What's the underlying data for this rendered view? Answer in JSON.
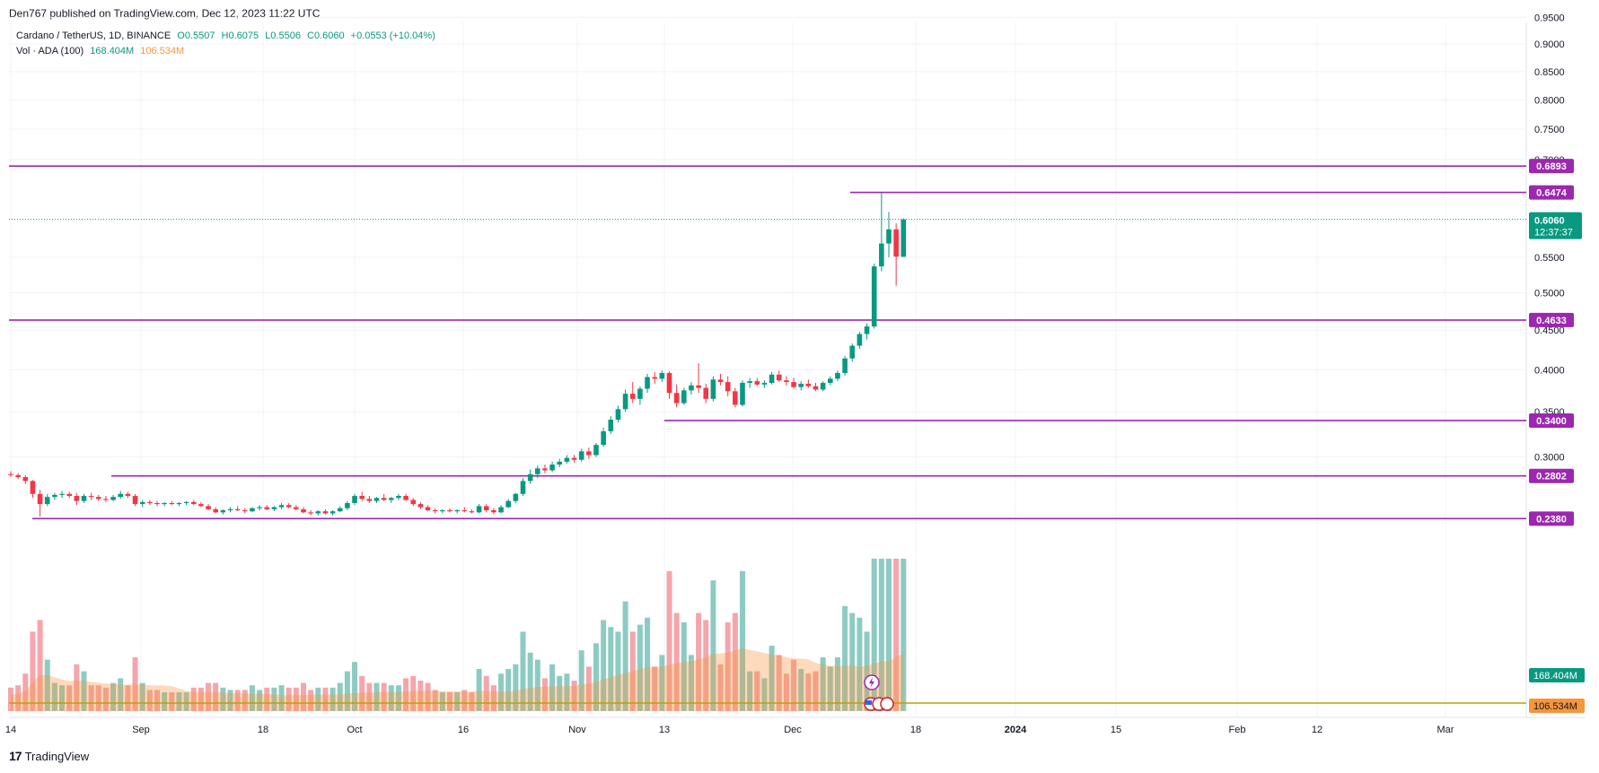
{
  "header": {
    "published": "Den767 published on TradingView.com, Dec 12, 2023 11:22 UTC"
  },
  "legend": {
    "symbol": "Cardano / TetherUS, 1D, BINANCE",
    "open": "O0.5507",
    "high": "H0.6075",
    "low": "L0.5506",
    "close": "C0.6060",
    "change": "+0.0553 (+10.04%)",
    "vol_label": "Vol · ADA (100)",
    "vol_value": "168.404M",
    "vol_ma": "106.534M"
  },
  "footer": {
    "brand": "TradingView"
  },
  "colors": {
    "up": "#089981",
    "down": "#f23645",
    "level": "#9c27b0",
    "vol_up": "#8dcbc2",
    "vol_down": "#f5a5ab",
    "ma": "#f7953b",
    "axis": "#787b86"
  },
  "chart_data": {
    "type": "candlestick",
    "title": "Cardano / TetherUS, 1D, BINANCE",
    "y_axis": {
      "ticks": [
        "0.9500",
        "0.9000",
        "0.8500",
        "0.8000",
        "0.7500",
        "0.7000",
        "0.5500",
        "0.5000",
        "0.4500",
        "0.4000",
        "0.3500",
        "0.3000"
      ]
    },
    "x_axis": {
      "ticks": [
        "14",
        "Sep",
        "18",
        "Oct",
        "16",
        "Nov",
        "13",
        "Dec",
        "18",
        "2024",
        "15",
        "Feb",
        "12",
        "Mar"
      ]
    },
    "levels": [
      {
        "price": 0.6893,
        "label": "0.6893"
      },
      {
        "price": 0.6474,
        "label": "0.6474"
      },
      {
        "price": 0.4633,
        "label": "0.4633"
      },
      {
        "price": 0.34,
        "label": "0.3400"
      },
      {
        "price": 0.2802,
        "label": "0.2802"
      },
      {
        "price": 0.238,
        "label": "0.2380"
      }
    ],
    "last_price": {
      "value": 0.606,
      "label": "0.6060",
      "countdown": "12:37:37"
    },
    "volume": {
      "last": "168.404M",
      "ma": "106.534M"
    },
    "candles_from": "Aug 14 2023",
    "candles": [
      [
        0.282,
        0.285,
        0.279,
        0.281
      ],
      [
        0.281,
        0.283,
        0.277,
        0.279
      ],
      [
        0.279,
        0.281,
        0.272,
        0.275
      ],
      [
        0.275,
        0.276,
        0.258,
        0.262
      ],
      [
        0.262,
        0.266,
        0.24,
        0.252
      ],
      [
        0.252,
        0.262,
        0.25,
        0.259
      ],
      [
        0.259,
        0.263,
        0.256,
        0.261
      ],
      [
        0.261,
        0.265,
        0.258,
        0.262
      ],
      [
        0.262,
        0.264,
        0.258,
        0.26
      ],
      [
        0.26,
        0.263,
        0.251,
        0.255
      ],
      [
        0.255,
        0.262,
        0.253,
        0.26
      ],
      [
        0.26,
        0.263,
        0.256,
        0.259
      ],
      [
        0.259,
        0.261,
        0.255,
        0.257
      ],
      [
        0.257,
        0.26,
        0.254,
        0.256
      ],
      [
        0.256,
        0.261,
        0.255,
        0.259
      ],
      [
        0.259,
        0.265,
        0.257,
        0.262
      ],
      [
        0.262,
        0.264,
        0.258,
        0.26
      ],
      [
        0.26,
        0.262,
        0.25,
        0.252
      ],
      [
        0.252,
        0.256,
        0.249,
        0.254
      ],
      [
        0.254,
        0.256,
        0.251,
        0.253
      ],
      [
        0.253,
        0.255,
        0.25,
        0.252
      ],
      [
        0.252,
        0.254,
        0.25,
        0.253
      ],
      [
        0.253,
        0.255,
        0.251,
        0.252
      ],
      [
        0.252,
        0.254,
        0.25,
        0.253
      ],
      [
        0.253,
        0.255,
        0.251,
        0.254
      ],
      [
        0.254,
        0.256,
        0.251,
        0.252
      ],
      [
        0.252,
        0.254,
        0.249,
        0.25
      ],
      [
        0.25,
        0.252,
        0.246,
        0.247
      ],
      [
        0.247,
        0.249,
        0.243,
        0.244
      ],
      [
        0.244,
        0.247,
        0.242,
        0.246
      ],
      [
        0.246,
        0.249,
        0.244,
        0.247
      ],
      [
        0.247,
        0.25,
        0.245,
        0.246
      ],
      [
        0.246,
        0.248,
        0.243,
        0.245
      ],
      [
        0.245,
        0.249,
        0.244,
        0.248
      ],
      [
        0.248,
        0.251,
        0.246,
        0.249
      ],
      [
        0.249,
        0.251,
        0.246,
        0.247
      ],
      [
        0.247,
        0.25,
        0.245,
        0.249
      ],
      [
        0.249,
        0.253,
        0.247,
        0.251
      ],
      [
        0.251,
        0.253,
        0.248,
        0.249
      ],
      [
        0.249,
        0.251,
        0.246,
        0.247
      ],
      [
        0.247,
        0.249,
        0.243,
        0.244
      ],
      [
        0.244,
        0.246,
        0.241,
        0.243
      ],
      [
        0.243,
        0.246,
        0.241,
        0.245
      ],
      [
        0.245,
        0.247,
        0.242,
        0.243
      ],
      [
        0.243,
        0.246,
        0.241,
        0.245
      ],
      [
        0.245,
        0.25,
        0.244,
        0.248
      ],
      [
        0.248,
        0.255,
        0.246,
        0.253
      ],
      [
        0.253,
        0.262,
        0.251,
        0.26
      ],
      [
        0.26,
        0.264,
        0.255,
        0.257
      ],
      [
        0.257,
        0.26,
        0.253,
        0.255
      ],
      [
        0.255,
        0.259,
        0.253,
        0.258
      ],
      [
        0.258,
        0.262,
        0.255,
        0.256
      ],
      [
        0.256,
        0.259,
        0.253,
        0.258
      ],
      [
        0.258,
        0.262,
        0.256,
        0.26
      ],
      [
        0.26,
        0.262,
        0.255,
        0.256
      ],
      [
        0.256,
        0.258,
        0.25,
        0.252
      ],
      [
        0.252,
        0.254,
        0.247,
        0.249
      ],
      [
        0.249,
        0.251,
        0.245,
        0.246
      ],
      [
        0.246,
        0.248,
        0.243,
        0.245
      ],
      [
        0.245,
        0.247,
        0.243,
        0.246
      ],
      [
        0.246,
        0.248,
        0.244,
        0.245
      ],
      [
        0.245,
        0.247,
        0.243,
        0.246
      ],
      [
        0.246,
        0.249,
        0.244,
        0.245
      ],
      [
        0.245,
        0.247,
        0.243,
        0.244
      ],
      [
        0.244,
        0.252,
        0.243,
        0.25
      ],
      [
        0.25,
        0.252,
        0.244,
        0.246
      ],
      [
        0.246,
        0.248,
        0.242,
        0.244
      ],
      [
        0.244,
        0.251,
        0.243,
        0.249
      ],
      [
        0.249,
        0.257,
        0.248,
        0.255
      ],
      [
        0.255,
        0.263,
        0.253,
        0.262
      ],
      [
        0.262,
        0.278,
        0.26,
        0.275
      ],
      [
        0.275,
        0.287,
        0.272,
        0.282
      ],
      [
        0.282,
        0.291,
        0.278,
        0.288
      ],
      [
        0.288,
        0.292,
        0.283,
        0.286
      ],
      [
        0.286,
        0.295,
        0.284,
        0.292
      ],
      [
        0.292,
        0.298,
        0.289,
        0.295
      ],
      [
        0.295,
        0.302,
        0.293,
        0.299
      ],
      [
        0.299,
        0.302,
        0.294,
        0.297
      ],
      [
        0.297,
        0.309,
        0.295,
        0.306
      ],
      [
        0.306,
        0.31,
        0.298,
        0.302
      ],
      [
        0.302,
        0.315,
        0.3,
        0.313
      ],
      [
        0.313,
        0.332,
        0.311,
        0.328
      ],
      [
        0.328,
        0.345,
        0.325,
        0.341
      ],
      [
        0.341,
        0.357,
        0.338,
        0.353
      ],
      [
        0.353,
        0.376,
        0.35,
        0.371
      ],
      [
        0.371,
        0.385,
        0.36,
        0.365
      ],
      [
        0.365,
        0.38,
        0.358,
        0.377
      ],
      [
        0.377,
        0.395,
        0.372,
        0.391
      ],
      [
        0.391,
        0.397,
        0.383,
        0.389
      ],
      [
        0.389,
        0.399,
        0.385,
        0.396
      ],
      [
        0.396,
        0.398,
        0.365,
        0.372
      ],
      [
        0.372,
        0.382,
        0.355,
        0.36
      ],
      [
        0.36,
        0.378,
        0.358,
        0.375
      ],
      [
        0.375,
        0.385,
        0.37,
        0.381
      ],
      [
        0.381,
        0.408,
        0.372,
        0.378
      ],
      [
        0.378,
        0.383,
        0.36,
        0.365
      ],
      [
        0.365,
        0.392,
        0.362,
        0.388
      ],
      [
        0.388,
        0.395,
        0.381,
        0.385
      ],
      [
        0.385,
        0.392,
        0.368,
        0.374
      ],
      [
        0.374,
        0.378,
        0.355,
        0.358
      ],
      [
        0.358,
        0.387,
        0.356,
        0.384
      ],
      [
        0.384,
        0.39,
        0.378,
        0.386
      ],
      [
        0.386,
        0.39,
        0.38,
        0.382
      ],
      [
        0.382,
        0.387,
        0.378,
        0.384
      ],
      [
        0.384,
        0.397,
        0.382,
        0.394
      ],
      [
        0.394,
        0.399,
        0.385,
        0.387
      ],
      [
        0.387,
        0.392,
        0.381,
        0.385
      ],
      [
        0.385,
        0.39,
        0.377,
        0.379
      ],
      [
        0.379,
        0.386,
        0.375,
        0.383
      ],
      [
        0.383,
        0.388,
        0.378,
        0.38
      ],
      [
        0.38,
        0.384,
        0.374,
        0.376
      ],
      [
        0.376,
        0.386,
        0.374,
        0.384
      ],
      [
        0.384,
        0.392,
        0.381,
        0.389
      ],
      [
        0.389,
        0.399,
        0.386,
        0.396
      ],
      [
        0.396,
        0.417,
        0.393,
        0.414
      ],
      [
        0.414,
        0.433,
        0.41,
        0.43
      ],
      [
        0.43,
        0.448,
        0.426,
        0.445
      ],
      [
        0.445,
        0.459,
        0.438,
        0.455
      ],
      [
        0.455,
        0.541,
        0.452,
        0.537
      ],
      [
        0.537,
        0.647,
        0.53,
        0.57
      ],
      [
        0.57,
        0.617,
        0.55,
        0.591
      ],
      [
        0.591,
        0.6,
        0.51,
        0.551
      ],
      [
        0.5507,
        0.6075,
        0.5506,
        0.606
      ]
    ]
  }
}
